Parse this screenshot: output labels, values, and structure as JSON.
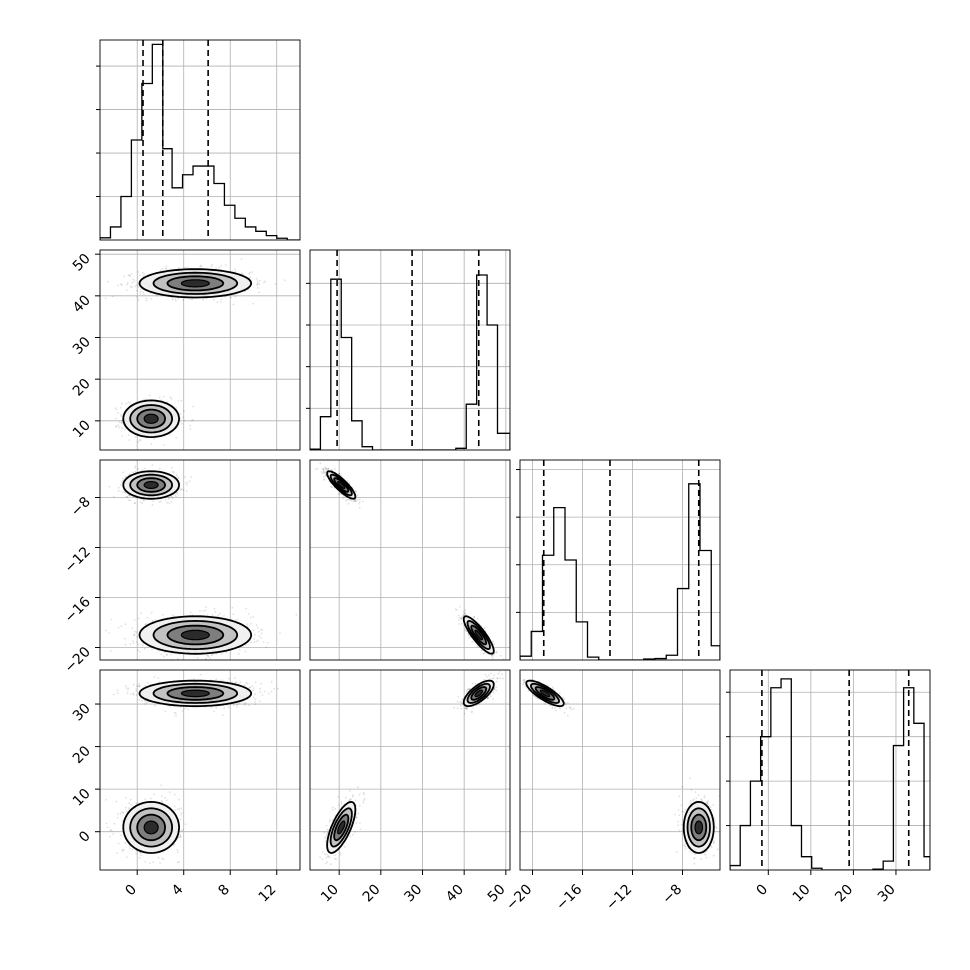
{
  "chart_data": {
    "type": "corner",
    "title": "",
    "parameters": [
      {
        "index": 0,
        "ticks": [
          "0",
          "4",
          "8",
          "12"
        ],
        "tick_values": [
          0,
          4,
          8,
          12
        ],
        "range": [
          -3.2,
          14.0
        ],
        "quantiles": [
          0.5,
          2.2,
          6.1
        ],
        "hist_edges": [
          -3.2,
          -2.3,
          -1.4,
          -0.5,
          0.4,
          1.3,
          2.2,
          3.0,
          3.9,
          4.8,
          5.7,
          6.6,
          7.5,
          8.4,
          9.3,
          10.2,
          11.1,
          12.0,
          12.9,
          14.0
        ],
        "hist_values": [
          0.5,
          3,
          10,
          23,
          36,
          45,
          21,
          12,
          15,
          17,
          17,
          13,
          8,
          5,
          3,
          2,
          1,
          0.4,
          0
        ]
      },
      {
        "index": 1,
        "ticks": [
          "10",
          "20",
          "30",
          "40",
          "50"
        ],
        "tick_values": [
          10,
          20,
          30,
          40,
          50
        ],
        "range": [
          3.0,
          51.0
        ],
        "quantiles": [
          9.5,
          27.5,
          43.5
        ],
        "hist_edges": [
          3.0,
          5.5,
          8.0,
          10.5,
          13.0,
          15.5,
          18.0,
          20.5,
          23.0,
          25.5,
          28.0,
          30.5,
          33.0,
          35.5,
          38.0,
          40.5,
          43.0,
          45.5,
          48.0,
          51.0
        ],
        "hist_values": [
          0.2,
          8,
          41,
          27,
          7,
          0.8,
          0,
          0,
          0,
          0,
          0,
          0,
          0,
          0,
          0.4,
          11,
          42,
          30,
          4
        ]
      },
      {
        "index": 2,
        "ticks": [
          "−20",
          "−16",
          "−12",
          "−8"
        ],
        "tick_values": [
          -20,
          -16,
          -12,
          -8
        ],
        "range": [
          -21.0,
          -5.0
        ],
        "quantiles": [
          -19.1,
          -13.8,
          -6.7
        ],
        "hist_edges": [
          -21.0,
          -20.1,
          -19.2,
          -18.3,
          -17.4,
          -16.5,
          -15.6,
          -14.7,
          -13.8,
          -12.9,
          -12.0,
          -11.1,
          -10.2,
          -9.3,
          -8.4,
          -7.5,
          -6.6,
          -5.7,
          -5.0
        ],
        "hist_values": [
          0.8,
          6,
          22,
          32,
          21,
          8,
          0.6,
          0,
          0,
          0,
          0,
          0.2,
          0.3,
          1,
          15,
          37,
          23,
          3
        ]
      },
      {
        "index": 3,
        "ticks": [
          "0",
          "10",
          "20",
          "30"
        ],
        "tick_values": [
          0,
          10,
          20,
          30
        ],
        "range": [
          -9.0,
          38.0
        ],
        "quantiles": [
          -1.5,
          19.0,
          33.0
        ],
        "hist_edges": [
          -9.0,
          -6.6,
          -4.2,
          -1.8,
          0.6,
          3.0,
          5.4,
          7.8,
          10.2,
          12.6,
          15.0,
          17.4,
          19.8,
          22.2,
          24.6,
          27.0,
          29.4,
          31.8,
          34.2,
          36.6,
          38.0
        ],
        "hist_values": [
          1,
          10,
          20,
          30,
          41,
          43,
          10,
          3,
          0.4,
          0,
          0,
          0,
          0,
          0,
          0.2,
          2,
          28,
          41,
          33,
          3
        ]
      }
    ],
    "left_ticks": {
      "1": {
        "labels": [
          "10",
          "20",
          "30",
          "40",
          "50"
        ],
        "values": [
          10,
          20,
          30,
          40,
          50
        ]
      },
      "2": {
        "labels": [
          "−8",
          "−12",
          "−16",
          "−20"
        ],
        "values": [
          -8,
          -12,
          -16,
          -20
        ]
      },
      "3": {
        "labels": [
          "0",
          "10",
          "20",
          "30"
        ],
        "values": [
          0,
          10,
          20,
          30
        ]
      }
    },
    "hist_ranges": [
      [
        0,
        46
      ],
      [
        0,
        48
      ],
      [
        0,
        42
      ],
      [
        0,
        45
      ]
    ],
    "scatter_clusters": [
      {
        "i": 1,
        "j": 0,
        "cx": 1.2,
        "cy": 10.5,
        "sx": 1.2,
        "sy": 2.2,
        "rho": 0,
        "dense": true
      },
      {
        "i": 1,
        "j": 0,
        "cx": 5.0,
        "cy": 43.0,
        "sx": 2.4,
        "sy": 1.7,
        "rho": 0,
        "dense": false
      },
      {
        "i": 2,
        "j": 0,
        "cx": 1.2,
        "cy": -7.0,
        "sx": 1.2,
        "sy": 0.55,
        "rho": 0,
        "dense": true
      },
      {
        "i": 2,
        "j": 0,
        "cx": 5.0,
        "cy": -19.0,
        "sx": 2.4,
        "sy": 0.75,
        "rho": 0,
        "dense": false
      },
      {
        "i": 2,
        "j": 1,
        "cx": 10.5,
        "cy": -7.0,
        "sx": 1.7,
        "sy": 0.55,
        "rho": -0.85,
        "dense": true
      },
      {
        "i": 2,
        "j": 1,
        "cx": 43.5,
        "cy": -19.0,
        "sx": 1.8,
        "sy": 0.75,
        "rho": -0.85,
        "dense": true
      },
      {
        "i": 3,
        "j": 0,
        "cx": 1.2,
        "cy": 1.0,
        "sx": 1.2,
        "sy": 3.0,
        "rho": 0,
        "dense": true
      },
      {
        "i": 3,
        "j": 0,
        "cx": 5.0,
        "cy": 32.5,
        "sx": 2.4,
        "sy": 1.5,
        "rho": 0,
        "dense": false
      },
      {
        "i": 3,
        "j": 1,
        "cx": 10.5,
        "cy": 1.0,
        "sx": 1.7,
        "sy": 3.0,
        "rho": 0.7,
        "dense": true
      },
      {
        "i": 3,
        "j": 1,
        "cx": 43.5,
        "cy": 32.5,
        "sx": 1.8,
        "sy": 1.5,
        "rho": 0.7,
        "dense": true
      },
      {
        "i": 3,
        "j": 2,
        "cx": -19.0,
        "cy": 32.5,
        "sx": 0.75,
        "sy": 1.5,
        "rho": -0.8,
        "dense": true
      },
      {
        "i": 3,
        "j": 2,
        "cx": -6.7,
        "cy": 1.0,
        "sx": 0.6,
        "sy": 3.0,
        "rho": 0,
        "dense": true
      }
    ],
    "grid": true,
    "colors": {
      "line": "#000000",
      "grid": "#b0b0b0",
      "points": "#000000"
    }
  }
}
